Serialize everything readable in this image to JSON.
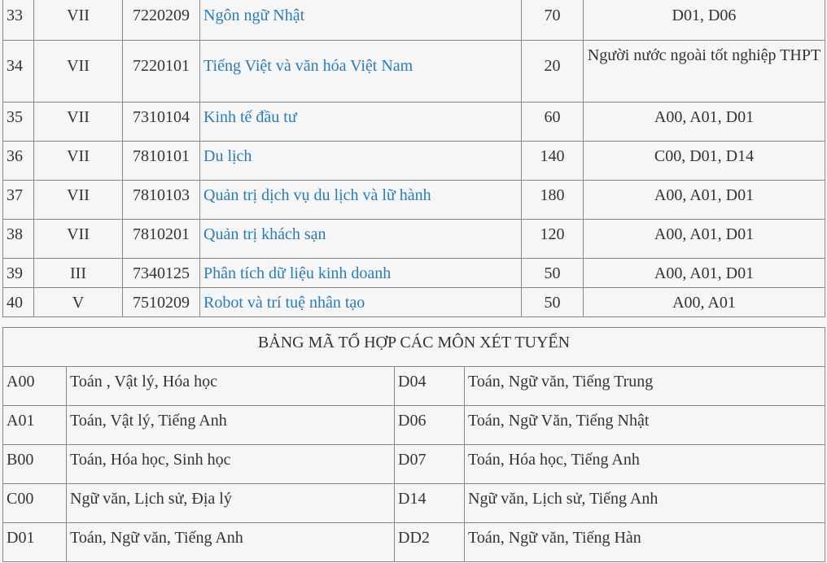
{
  "programs": [
    {
      "no": "33",
      "group": "VII",
      "code": "7220209",
      "name": "Ngôn ngữ Nhật",
      "quota": "70",
      "combos": "D01, D06"
    },
    {
      "no": "34",
      "group": "VII",
      "code": "7220101",
      "name": "Tiếng Việt và văn hóa Việt Nam",
      "quota": "20",
      "combos": "Người nước ngoài tốt nghiệp THPT"
    },
    {
      "no": "35",
      "group": "VII",
      "code": "7310104",
      "name": "Kinh tế đầu tư",
      "quota": "60",
      "combos": "A00, A01, D01"
    },
    {
      "no": "36",
      "group": "VII",
      "code": "7810101",
      "name": "Du lịch",
      "quota": "140",
      "combos": "C00, D01, D14"
    },
    {
      "no": "37",
      "group": "VII",
      "code": "7810103",
      "name": "Quản trị dịch vụ du lịch và lữ hành",
      "quota": "180",
      "combos": "A00, A01, D01"
    },
    {
      "no": "38",
      "group": "VII",
      "code": "7810201",
      "name": "Quản trị khách sạn",
      "quota": "120",
      "combos": "A00, A01, D01"
    },
    {
      "no": "39",
      "group": "III",
      "code": "7340125",
      "name": "Phân tích dữ liệu kinh doanh",
      "quota": "50",
      "combos": "A00, A01, D01"
    },
    {
      "no": "40",
      "group": "V",
      "code": "7510209",
      "name": "Robot và trí tuệ nhân tạo",
      "quota": "50",
      "combos": "A00, A01"
    }
  ],
  "combo_table": {
    "title": "BẢNG MÃ TỔ HỢP CÁC MÔN XÉT TUYỂN",
    "rows": [
      [
        {
          "code": "A00",
          "subjects": "Toán , Vật lý, Hóa học"
        },
        {
          "code": "D04",
          "subjects": "Toán, Ngữ văn, Tiếng Trung"
        }
      ],
      [
        {
          "code": "A01",
          "subjects": "Toán, Vật lý, Tiếng Anh"
        },
        {
          "code": "D06",
          "subjects": "Toán, Ngữ Văn, Tiếng Nhật"
        }
      ],
      [
        {
          "code": "B00",
          "subjects": "Toán, Hóa học, Sinh học"
        },
        {
          "code": "D07",
          "subjects": "Toán, Hóa học, Tiếng Anh"
        }
      ],
      [
        {
          "code": "C00",
          "subjects": "Ngữ văn, Lịch sử, Địa lý"
        },
        {
          "code": "D14",
          "subjects": "Ngữ văn, Lịch sử, Tiếng Anh"
        }
      ],
      [
        {
          "code": "D01",
          "subjects": "Toán, Ngữ văn, Tiếng Anh"
        },
        {
          "code": "DD2",
          "subjects": "Toán, Ngữ văn, Tiếng Hàn"
        }
      ]
    ]
  },
  "colors": {
    "link": "#2b7bba",
    "background": "#f6f6f6",
    "text": "#333333"
  }
}
